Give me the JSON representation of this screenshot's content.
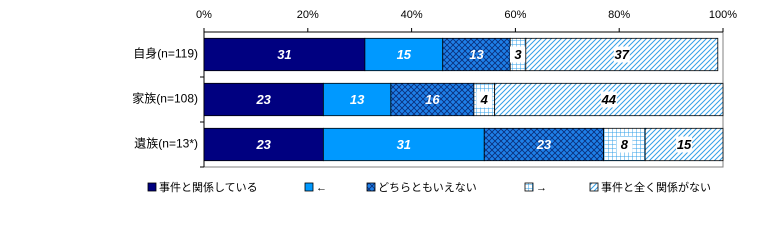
{
  "chart_data": {
    "type": "stacked-barh",
    "categories": [
      "自身(n=119)",
      "家族(n=108)",
      "遺族(n=13*)"
    ],
    "series": [
      {
        "name": "事件と関係している",
        "color": "#000080",
        "values": [
          31,
          23,
          23
        ]
      },
      {
        "name": "←",
        "color": "#0099ff",
        "values": [
          15,
          13,
          31
        ]
      },
      {
        "name": "どちらともいえない",
        "color": "#1e7fe8",
        "pattern": "crosshatch",
        "values": [
          13,
          16,
          23
        ]
      },
      {
        "name": "→",
        "color": "#33a0e8",
        "pattern": "grid",
        "values": [
          3,
          4,
          8
        ]
      },
      {
        "name": "事件と全く関係がない",
        "color": "#33a0e8",
        "pattern": "diagonal",
        "values": [
          37,
          44,
          15
        ]
      }
    ],
    "xlim": [
      0,
      100
    ],
    "xticks": [
      {
        "value": 0,
        "label": "0%"
      },
      {
        "value": 20,
        "label": "20%"
      },
      {
        "value": 40,
        "label": "40%"
      },
      {
        "value": 60,
        "label": "60%"
      },
      {
        "value": 80,
        "label": "80%"
      },
      {
        "value": 100,
        "label": "100%"
      }
    ],
    "legend": "bottom"
  }
}
